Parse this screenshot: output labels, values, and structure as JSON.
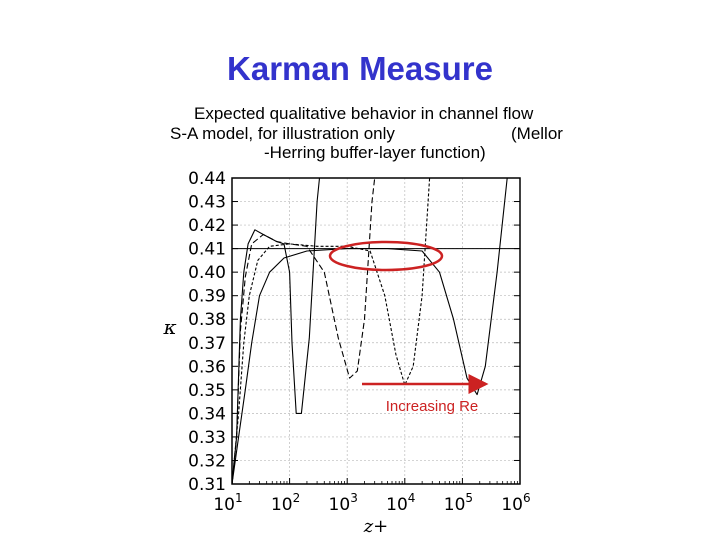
{
  "slide": {
    "title": "Karman Measure",
    "subtitle_lines": [
      "Expected qualitative behavior in channel flow",
      "S-A model, for illustration only",
      "(Mellor",
      "-Herring buffer-layer function)"
    ]
  },
  "colors": {
    "title": "#3333cc",
    "annotation": "#cc2222",
    "curves": "#000000"
  },
  "chart_data": {
    "type": "line",
    "xscale": "log",
    "xlim": [
      10,
      1000000
    ],
    "ylim": [
      0.31,
      0.44
    ],
    "xlabel": "z+",
    "ylabel": "κ",
    "x_ticks": [
      {
        "base": "10",
        "exp": "1"
      },
      {
        "base": "10",
        "exp": "2"
      },
      {
        "base": "10",
        "exp": "3"
      },
      {
        "base": "10",
        "exp": "4"
      },
      {
        "base": "10",
        "exp": "5"
      },
      {
        "base": "10",
        "exp": "6"
      }
    ],
    "y_ticks": [
      "0.44",
      "0.43",
      "0.42",
      "0.41",
      "0.40",
      "0.39",
      "0.38",
      "0.37",
      "0.36",
      "0.35",
      "0.34",
      "0.33",
      "0.32",
      "0.31"
    ],
    "grid": true,
    "reference_line": {
      "y": 0.41
    },
    "annotation": {
      "text": "Increasing Re",
      "arrow": "right"
    },
    "series": [
      {
        "points": [
          [
            10,
            0.31
          ],
          [
            12,
            0.33
          ],
          [
            14,
            0.38
          ],
          [
            16,
            0.4
          ],
          [
            19,
            0.412
          ],
          [
            25,
            0.418
          ],
          [
            35,
            0.416
          ],
          [
            60,
            0.413
          ],
          [
            80,
            0.412
          ],
          [
            100,
            0.4
          ],
          [
            110,
            0.37
          ],
          [
            130,
            0.34
          ],
          [
            160,
            0.34
          ],
          [
            220,
            0.372
          ],
          [
            300,
            0.43
          ],
          [
            330,
            0.44
          ]
        ]
      },
      {
        "points": [
          [
            10,
            0.31
          ],
          [
            12,
            0.33
          ],
          [
            14,
            0.375
          ],
          [
            17,
            0.398
          ],
          [
            22,
            0.412
          ],
          [
            35,
            0.416
          ],
          [
            60,
            0.413
          ],
          [
            100,
            0.412
          ],
          [
            200,
            0.411
          ],
          [
            400,
            0.4
          ],
          [
            700,
            0.372
          ],
          [
            1100,
            0.355
          ],
          [
            1500,
            0.358
          ],
          [
            2000,
            0.38
          ],
          [
            2700,
            0.43
          ],
          [
            3000,
            0.44
          ]
        ]
      },
      {
        "points": [
          [
            10,
            0.31
          ],
          [
            13,
            0.34
          ],
          [
            16,
            0.37
          ],
          [
            20,
            0.39
          ],
          [
            28,
            0.405
          ],
          [
            45,
            0.411
          ],
          [
            100,
            0.412
          ],
          [
            300,
            0.411
          ],
          [
            1000,
            0.411
          ],
          [
            2500,
            0.409
          ],
          [
            4500,
            0.39
          ],
          [
            7000,
            0.365
          ],
          [
            10000,
            0.352
          ],
          [
            14000,
            0.36
          ],
          [
            20000,
            0.39
          ],
          [
            27000,
            0.44
          ]
        ]
      },
      {
        "points": [
          [
            10,
            0.31
          ],
          [
            13,
            0.33
          ],
          [
            17,
            0.35
          ],
          [
            22,
            0.37
          ],
          [
            30,
            0.39
          ],
          [
            45,
            0.4
          ],
          [
            80,
            0.406
          ],
          [
            200,
            0.409
          ],
          [
            1000,
            0.41
          ],
          [
            5000,
            0.41
          ],
          [
            20000,
            0.409
          ],
          [
            40000,
            0.4
          ],
          [
            70000,
            0.38
          ],
          [
            120000,
            0.355
          ],
          [
            180000,
            0.348
          ],
          [
            250000,
            0.36
          ],
          [
            400000,
            0.4
          ],
          [
            600000,
            0.44
          ]
        ]
      }
    ]
  }
}
